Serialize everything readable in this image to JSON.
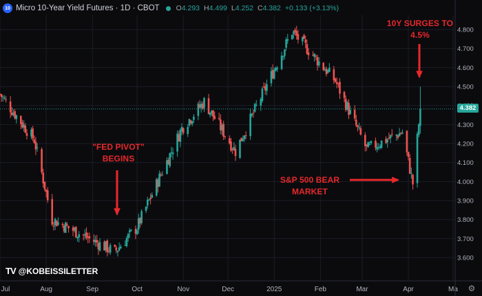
{
  "header": {
    "badge": "10",
    "title": "Micro 10-Year Yield Futures · 1D · CBOT",
    "open_label": "O",
    "open": "4.293",
    "high_label": "H",
    "high": "4.499",
    "low_label": "L",
    "low": "4.252",
    "close_label": "C",
    "close": "4.382",
    "change": "+0.133 (+3.13%)"
  },
  "last_price": "4.382",
  "watermark": {
    "logo": "TV",
    "text": "@KOBEISSILETTER"
  },
  "annotations": {
    "fed_pivot": [
      "\"FED PIVOT\"",
      "BEGINS"
    ],
    "surge": [
      "10Y SURGES TO",
      "4.5%"
    ],
    "bear": [
      "S&P 500 BEAR",
      "MARKET"
    ]
  },
  "colors": {
    "background": "#0b0b0e",
    "up": "#26a69a",
    "down": "#ef5350",
    "annotation": "#e8282b",
    "grid": "#1b1e26",
    "axis_text": "#b2b5be"
  },
  "chart_data": {
    "type": "candlestick",
    "title": "Micro 10-Year Yield Futures · 1D · CBOT",
    "xlabel": "",
    "ylabel": "",
    "ylim": [
      3.55,
      4.85
    ],
    "y_ticks": [
      "3.600",
      "3.700",
      "3.800",
      "3.900",
      "4.000",
      "4.100",
      "4.200",
      "4.300",
      "4.400",
      "4.500",
      "4.600",
      "4.700",
      "4.800"
    ],
    "x_ticks": [
      "Jul",
      "Aug",
      "Sep",
      "Oct",
      "Nov",
      "Dec",
      "2025",
      "Feb",
      "Mar",
      "Apr",
      "Ma"
    ],
    "x_domain": [
      "2024-07-01",
      "2025-05-01"
    ],
    "last_price": 4.382,
    "grid": true,
    "key_points": [
      {
        "date": "2024-07-01",
        "close": 4.46
      },
      {
        "date": "2024-07-24",
        "close": 4.22
      },
      {
        "date": "2024-08-05",
        "close": 3.8
      },
      {
        "date": "2024-09-16",
        "close": 3.63
      },
      {
        "date": "2024-10-01",
        "close": 3.76
      },
      {
        "date": "2024-10-31",
        "close": 4.28
      },
      {
        "date": "2024-11-15",
        "close": 4.42
      },
      {
        "date": "2024-12-06",
        "close": 4.16
      },
      {
        "date": "2025-01-13",
        "close": 4.79
      },
      {
        "date": "2025-02-11",
        "close": 4.53
      },
      {
        "date": "2025-03-04",
        "close": 4.17
      },
      {
        "date": "2025-03-28",
        "close": 4.26
      },
      {
        "date": "2025-04-04",
        "close": 3.99
      },
      {
        "date": "2025-04-09",
        "close": 4.382
      }
    ],
    "events": [
      {
        "label": "\"FED PIVOT\" BEGINS",
        "date": "2024-09-18",
        "value": 3.7
      },
      {
        "label": "10Y SURGES TO 4.5%",
        "date": "2025-04-09",
        "value": 4.5
      },
      {
        "label": "S&P 500 BEAR MARKET",
        "date": "2025-04-07",
        "value": 4.01
      }
    ]
  }
}
